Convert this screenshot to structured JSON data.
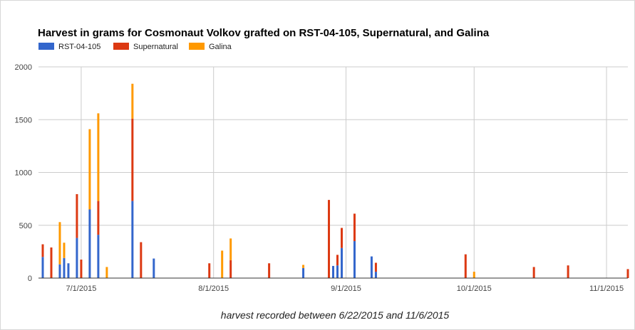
{
  "chart_data": {
    "type": "bar",
    "stacked": true,
    "title": "Harvest in grams for Cosmonaut Volkov grafted on RST-04-105, Supernatural, and Galina",
    "xlabel": "harvest recorded between 6/22/2015 and 11/6/2015",
    "ylabel": "",
    "x_type": "date",
    "xlim": [
      "2015-06-21",
      "2015-11-06"
    ],
    "ylim": [
      0,
      2000
    ],
    "y_ticks": [
      0,
      500,
      1000,
      1500,
      2000
    ],
    "y_tick_labels": [
      "0",
      "500",
      "1000",
      "1500",
      "2000"
    ],
    "x_ticks": [
      "2015-07-01",
      "2015-08-01",
      "2015-09-01",
      "2015-10-01",
      "2015-11-01"
    ],
    "x_tick_labels": [
      "7/1/2015",
      "8/1/2015",
      "9/1/2015",
      "10/1/2015",
      "11/1/2015"
    ],
    "grid": true,
    "legend_position": "top-left",
    "colors": {
      "RST-04-105": "#3366cc",
      "Supernatural": "#dc3912",
      "Galina": "#ff9900"
    },
    "series": [
      {
        "name": "RST-04-105",
        "color": "#3366cc"
      },
      {
        "name": "Supernatural",
        "color": "#dc3912"
      },
      {
        "name": "Galina",
        "color": "#ff9900"
      }
    ],
    "points": [
      {
        "date": "2015-06-22",
        "RST-04-105": 200,
        "Supernatural": 120,
        "Galina": 0
      },
      {
        "date": "2015-06-24",
        "RST-04-105": 0,
        "Supernatural": 290,
        "Galina": 0
      },
      {
        "date": "2015-06-26",
        "RST-04-105": 130,
        "Supernatural": 0,
        "Galina": 400
      },
      {
        "date": "2015-06-27",
        "RST-04-105": 190,
        "Supernatural": 0,
        "Galina": 145
      },
      {
        "date": "2015-06-28",
        "RST-04-105": 140,
        "Supernatural": 0,
        "Galina": 0
      },
      {
        "date": "2015-06-30",
        "RST-04-105": 380,
        "Supernatural": 415,
        "Galina": 0
      },
      {
        "date": "2015-07-01",
        "RST-04-105": 0,
        "Supernatural": 175,
        "Galina": 0
      },
      {
        "date": "2015-07-03",
        "RST-04-105": 650,
        "Supernatural": 0,
        "Galina": 760
      },
      {
        "date": "2015-07-05",
        "RST-04-105": 410,
        "Supernatural": 320,
        "Galina": 830
      },
      {
        "date": "2015-07-07",
        "RST-04-105": 0,
        "Supernatural": 0,
        "Galina": 105
      },
      {
        "date": "2015-07-13",
        "RST-04-105": 730,
        "Supernatural": 780,
        "Galina": 330
      },
      {
        "date": "2015-07-15",
        "RST-04-105": 0,
        "Supernatural": 340,
        "Galina": 0
      },
      {
        "date": "2015-07-18",
        "RST-04-105": 185,
        "Supernatural": 0,
        "Galina": 0
      },
      {
        "date": "2015-07-31",
        "RST-04-105": 0,
        "Supernatural": 140,
        "Galina": 0
      },
      {
        "date": "2015-08-03",
        "RST-04-105": 0,
        "Supernatural": 0,
        "Galina": 260
      },
      {
        "date": "2015-08-05",
        "RST-04-105": 0,
        "Supernatural": 170,
        "Galina": 205
      },
      {
        "date": "2015-08-14",
        "RST-04-105": 0,
        "Supernatural": 140,
        "Galina": 0
      },
      {
        "date": "2015-08-22",
        "RST-04-105": 95,
        "Supernatural": 0,
        "Galina": 30
      },
      {
        "date": "2015-08-28",
        "RST-04-105": 0,
        "Supernatural": 740,
        "Galina": 0
      },
      {
        "date": "2015-08-29",
        "RST-04-105": 115,
        "Supernatural": 0,
        "Galina": 0
      },
      {
        "date": "2015-08-30",
        "RST-04-105": 120,
        "Supernatural": 100,
        "Galina": 0
      },
      {
        "date": "2015-08-31",
        "RST-04-105": 285,
        "Supernatural": 190,
        "Galina": 0
      },
      {
        "date": "2015-09-03",
        "RST-04-105": 350,
        "Supernatural": 260,
        "Galina": 0
      },
      {
        "date": "2015-09-07",
        "RST-04-105": 205,
        "Supernatural": 0,
        "Galina": 0
      },
      {
        "date": "2015-09-08",
        "RST-04-105": 60,
        "Supernatural": 85,
        "Galina": 0
      },
      {
        "date": "2015-09-29",
        "RST-04-105": 0,
        "Supernatural": 225,
        "Galina": 0
      },
      {
        "date": "2015-10-01",
        "RST-04-105": 0,
        "Supernatural": 0,
        "Galina": 60
      },
      {
        "date": "2015-10-15",
        "RST-04-105": 0,
        "Supernatural": 105,
        "Galina": 0
      },
      {
        "date": "2015-10-23",
        "RST-04-105": 0,
        "Supernatural": 120,
        "Galina": 0
      },
      {
        "date": "2015-11-06",
        "RST-04-105": 0,
        "Supernatural": 85,
        "Galina": 0
      }
    ]
  }
}
